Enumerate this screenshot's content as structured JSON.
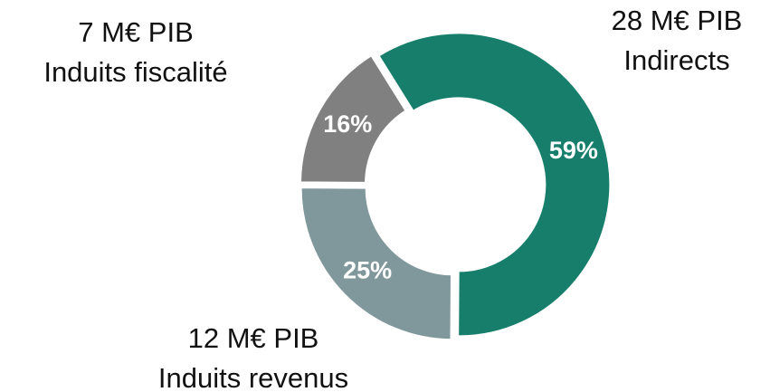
{
  "chart_data": {
    "type": "pie",
    "categories": [
      "Indirects",
      "Induits revenus",
      "Induits fiscalité"
    ],
    "amounts": [
      "28 M€ PIB",
      "12 M€ PIB",
      "7 M€ PIB"
    ],
    "values": [
      59,
      25,
      16
    ],
    "value_labels": [
      "59%",
      "25%",
      "16%"
    ],
    "colors": [
      "#167e6b",
      "#80979c",
      "#808080"
    ],
    "donut": true
  }
}
